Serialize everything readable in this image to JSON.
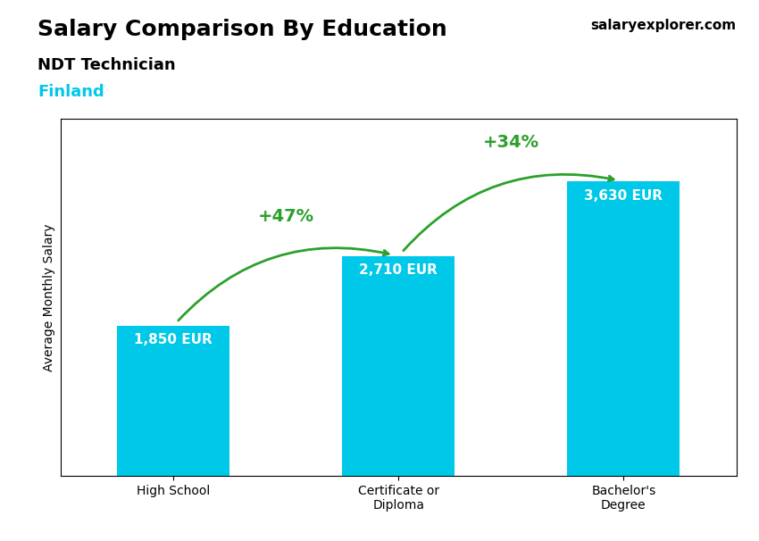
{
  "chart_data": {
    "type": "bar",
    "title": "Salary Comparison By Education",
    "subtitle": "NDT Technician",
    "country": "Finland",
    "source": "salaryexplorer.com",
    "categories": [
      "High School",
      "Certificate or\nDiploma",
      "Bachelor's\nDegree"
    ],
    "values": [
      1850,
      2710,
      3630
    ],
    "value_labels": [
      "1,850 EUR",
      "2,710 EUR",
      "3,630 EUR"
    ],
    "data_labels": true,
    "annotations": [
      "+47%",
      "+34%"
    ],
    "color": "#00c8e8",
    "ylabel": "Average Monthly Salary",
    "ylim": [
      0,
      4400
    ],
    "yticks": [],
    "tick_labels": "x"
  }
}
